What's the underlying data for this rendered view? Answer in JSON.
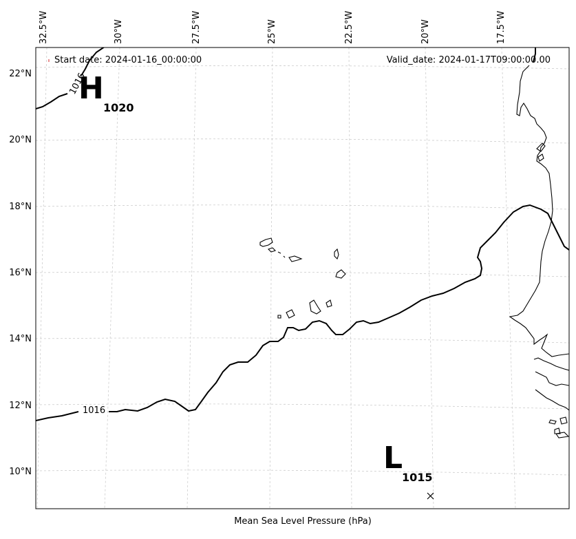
{
  "info": {
    "start_date": "Start date: 2024-01-16_00:00:00",
    "valid_date": "Valid_date: 2024-01-17T09:00:00.00"
  },
  "caption": "Mean Sea Level Pressure (hPa)",
  "lon_labels": [
    "32.5°W",
    "30°W",
    "27.5°W",
    "25°W",
    "22.5°W",
    "20°W",
    "17.5°W"
  ],
  "lat_labels": [
    "22°N",
    "20°N",
    "18°N",
    "16°N",
    "14°N",
    "12°N",
    "10°N"
  ],
  "pressure_centers": [
    {
      "type": "H",
      "value": "1020"
    },
    {
      "type": "L",
      "value": "1015"
    }
  ],
  "contour_labels": [
    "1016",
    "1016"
  ],
  "colors": {
    "coastline": "#000000",
    "isobar": "#000000",
    "grid": "#cccccc",
    "start_marker": "#d62728"
  }
}
